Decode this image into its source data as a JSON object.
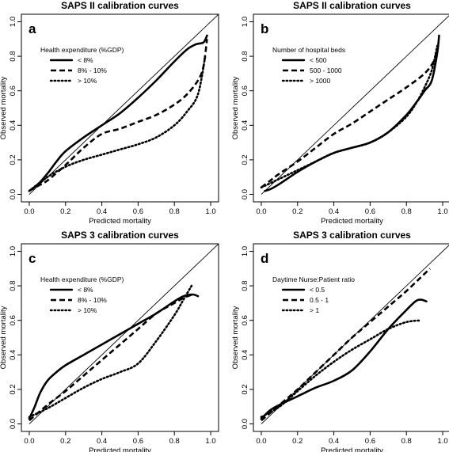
{
  "chart_data": [
    {
      "type": "line",
      "panel_letter": "a",
      "title": "SAPS II calibration curves",
      "xlabel": "Predicted mortality",
      "ylabel": "Observed mortality",
      "xlim": [
        0,
        1
      ],
      "ylim": [
        0,
        1
      ],
      "xticks": [
        "0.0",
        "0.2",
        "0.4",
        "0.6",
        "0.8",
        "1.0"
      ],
      "yticks": [
        "0.0",
        "0.2",
        "0.4",
        "0.6",
        "0.8",
        "1.0"
      ],
      "legend_title": "Health expenditure (%GDP)",
      "legend_position": "top-left",
      "series": [
        {
          "name": "< 8%",
          "style": "solid",
          "x": [
            0.0,
            0.05,
            0.1,
            0.15,
            0.2,
            0.3,
            0.4,
            0.5,
            0.6,
            0.7,
            0.8,
            0.87,
            0.92,
            0.96,
            0.98
          ],
          "y": [
            0.02,
            0.06,
            0.12,
            0.19,
            0.25,
            0.33,
            0.4,
            0.47,
            0.56,
            0.66,
            0.77,
            0.84,
            0.87,
            0.88,
            0.92
          ]
        },
        {
          "name": "8% - 10%",
          "style": "dashed",
          "x": [
            0.0,
            0.05,
            0.1,
            0.2,
            0.3,
            0.4,
            0.5,
            0.6,
            0.7,
            0.8,
            0.87,
            0.93,
            0.96,
            0.98
          ],
          "y": [
            0.02,
            0.05,
            0.08,
            0.17,
            0.27,
            0.35,
            0.38,
            0.42,
            0.46,
            0.52,
            0.58,
            0.66,
            0.74,
            0.9
          ]
        },
        {
          "name": "> 10%",
          "style": "dotted",
          "x": [
            0.0,
            0.1,
            0.2,
            0.3,
            0.4,
            0.5,
            0.6,
            0.7,
            0.8,
            0.87,
            0.93,
            0.97
          ],
          "y": [
            0.02,
            0.1,
            0.16,
            0.2,
            0.23,
            0.26,
            0.29,
            0.33,
            0.4,
            0.48,
            0.58,
            0.8
          ]
        }
      ]
    },
    {
      "type": "line",
      "panel_letter": "b",
      "title": "SAPS II calibration curves",
      "xlabel": "Predicted mortality",
      "ylabel": "Observed mortality",
      "xlim": [
        0,
        1
      ],
      "ylim": [
        0,
        1
      ],
      "xticks": [
        "0.0",
        "0.2",
        "0.4",
        "0.6",
        "0.8",
        "1.0"
      ],
      "yticks": [
        "0.0",
        "0.2",
        "0.4",
        "0.6",
        "0.8",
        "1.0"
      ],
      "legend_title": "Number of hospital beds",
      "legend_position": "top-left",
      "series": [
        {
          "name": "< 500",
          "style": "solid",
          "x": [
            0.02,
            0.05,
            0.1,
            0.2,
            0.3,
            0.4,
            0.5,
            0.6,
            0.7,
            0.8,
            0.86,
            0.9,
            0.94,
            0.97,
            0.98
          ],
          "y": [
            0.02,
            0.03,
            0.06,
            0.13,
            0.19,
            0.24,
            0.27,
            0.3,
            0.36,
            0.46,
            0.54,
            0.6,
            0.66,
            0.82,
            0.92
          ]
        },
        {
          "name": "500 - 1000",
          "style": "dashed",
          "x": [
            0.0,
            0.05,
            0.1,
            0.2,
            0.3,
            0.4,
            0.5,
            0.6,
            0.7,
            0.8,
            0.9,
            0.95,
            0.97
          ],
          "y": [
            0.04,
            0.08,
            0.12,
            0.19,
            0.27,
            0.35,
            0.41,
            0.48,
            0.55,
            0.62,
            0.7,
            0.77,
            0.84
          ]
        },
        {
          "name": "> 1000",
          "style": "dotted",
          "x": [
            0.0,
            0.1,
            0.2,
            0.3,
            0.4,
            0.5,
            0.6,
            0.7,
            0.8,
            0.86,
            0.9,
            0.94,
            0.97
          ],
          "y": [
            0.04,
            0.09,
            0.14,
            0.19,
            0.24,
            0.27,
            0.3,
            0.36,
            0.45,
            0.54,
            0.62,
            0.72,
            0.86
          ]
        }
      ]
    },
    {
      "type": "line",
      "panel_letter": "c",
      "title": "SAPS 3 calibration curves",
      "xlabel": "Predicted mortality",
      "ylabel": "Observed mortality",
      "xlim": [
        0,
        1
      ],
      "ylim": [
        0,
        1
      ],
      "xticks": [
        "0.0",
        "0.2",
        "0.4",
        "0.6",
        "0.8",
        "1.0"
      ],
      "yticks": [
        "0.0",
        "0.2",
        "0.4",
        "0.6",
        "0.8",
        "1.0"
      ],
      "legend_title": "Health expenditure (%GDP)",
      "legend_position": "top-left",
      "series": [
        {
          "name": "< 8%",
          "style": "solid",
          "x": [
            0.0,
            0.03,
            0.06,
            0.1,
            0.15,
            0.2,
            0.3,
            0.4,
            0.5,
            0.6,
            0.7,
            0.8,
            0.85,
            0.9,
            0.93
          ],
          "y": [
            0.03,
            0.1,
            0.18,
            0.25,
            0.3,
            0.34,
            0.4,
            0.46,
            0.52,
            0.58,
            0.64,
            0.71,
            0.74,
            0.75,
            0.74
          ]
        },
        {
          "name": "8% - 10%",
          "style": "dashed",
          "x": [
            0.0,
            0.1,
            0.2,
            0.3,
            0.4,
            0.5,
            0.6,
            0.7,
            0.8,
            0.85,
            0.9
          ],
          "y": [
            0.02,
            0.11,
            0.19,
            0.28,
            0.37,
            0.46,
            0.55,
            0.64,
            0.7,
            0.73,
            0.75
          ]
        },
        {
          "name": "> 10%",
          "style": "dotted",
          "x": [
            0.0,
            0.1,
            0.2,
            0.3,
            0.4,
            0.5,
            0.6,
            0.7,
            0.8,
            0.85,
            0.9
          ],
          "y": [
            0.04,
            0.09,
            0.15,
            0.21,
            0.26,
            0.3,
            0.35,
            0.48,
            0.63,
            0.72,
            0.81
          ]
        }
      ]
    },
    {
      "type": "line",
      "panel_letter": "d",
      "title": "SAPS 3 calibration curves",
      "xlabel": "Predicted mortality",
      "ylabel": "Observed mortality",
      "xlim": [
        0,
        1
      ],
      "ylim": [
        0,
        1
      ],
      "xticks": [
        "0.0",
        "0.2",
        "0.4",
        "0.6",
        "0.8",
        "1.0"
      ],
      "yticks": [
        "0.0",
        "0.2",
        "0.4",
        "0.6",
        "0.8",
        "1.0"
      ],
      "legend_title": "Daytime Nurse:Patient ratio",
      "legend_position": "top-left",
      "series": [
        {
          "name": "< 0.5",
          "style": "solid",
          "x": [
            0.0,
            0.05,
            0.1,
            0.2,
            0.3,
            0.4,
            0.5,
            0.6,
            0.7,
            0.8,
            0.85,
            0.88,
            0.91
          ],
          "y": [
            0.03,
            0.08,
            0.11,
            0.16,
            0.21,
            0.25,
            0.31,
            0.42,
            0.55,
            0.66,
            0.71,
            0.72,
            0.71
          ]
        },
        {
          "name": "0.5 - 1",
          "style": "dashed",
          "x": [
            0.0,
            0.1,
            0.2,
            0.3,
            0.4,
            0.5,
            0.6,
            0.7,
            0.8,
            0.9,
            0.93
          ],
          "y": [
            0.02,
            0.11,
            0.2,
            0.3,
            0.4,
            0.5,
            0.59,
            0.68,
            0.77,
            0.87,
            0.9
          ]
        },
        {
          "name": "> 1",
          "style": "dotted",
          "x": [
            0.0,
            0.1,
            0.2,
            0.3,
            0.4,
            0.5,
            0.6,
            0.7,
            0.8,
            0.88
          ],
          "y": [
            0.04,
            0.1,
            0.19,
            0.28,
            0.36,
            0.43,
            0.49,
            0.55,
            0.59,
            0.6
          ]
        }
      ]
    }
  ]
}
